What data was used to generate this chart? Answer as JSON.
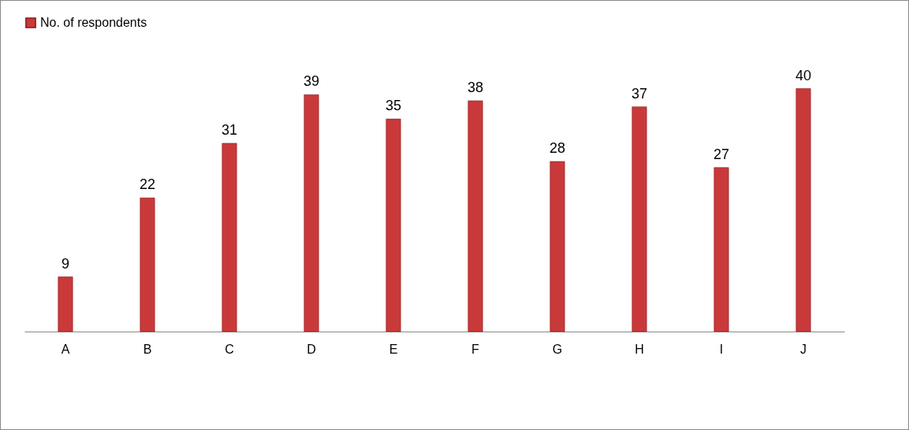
{
  "chart_data": {
    "type": "bar",
    "categories": [
      "A",
      "B",
      "C",
      "D",
      "E",
      "F",
      "G",
      "H",
      "I",
      "J"
    ],
    "series": [
      {
        "name": "No. of respondents",
        "color": "#c9393a",
        "values": [
          9,
          22,
          31,
          39,
          35,
          38,
          28,
          37,
          27,
          40
        ]
      }
    ],
    "data_labels": true,
    "legend": "top",
    "grid": false
  }
}
